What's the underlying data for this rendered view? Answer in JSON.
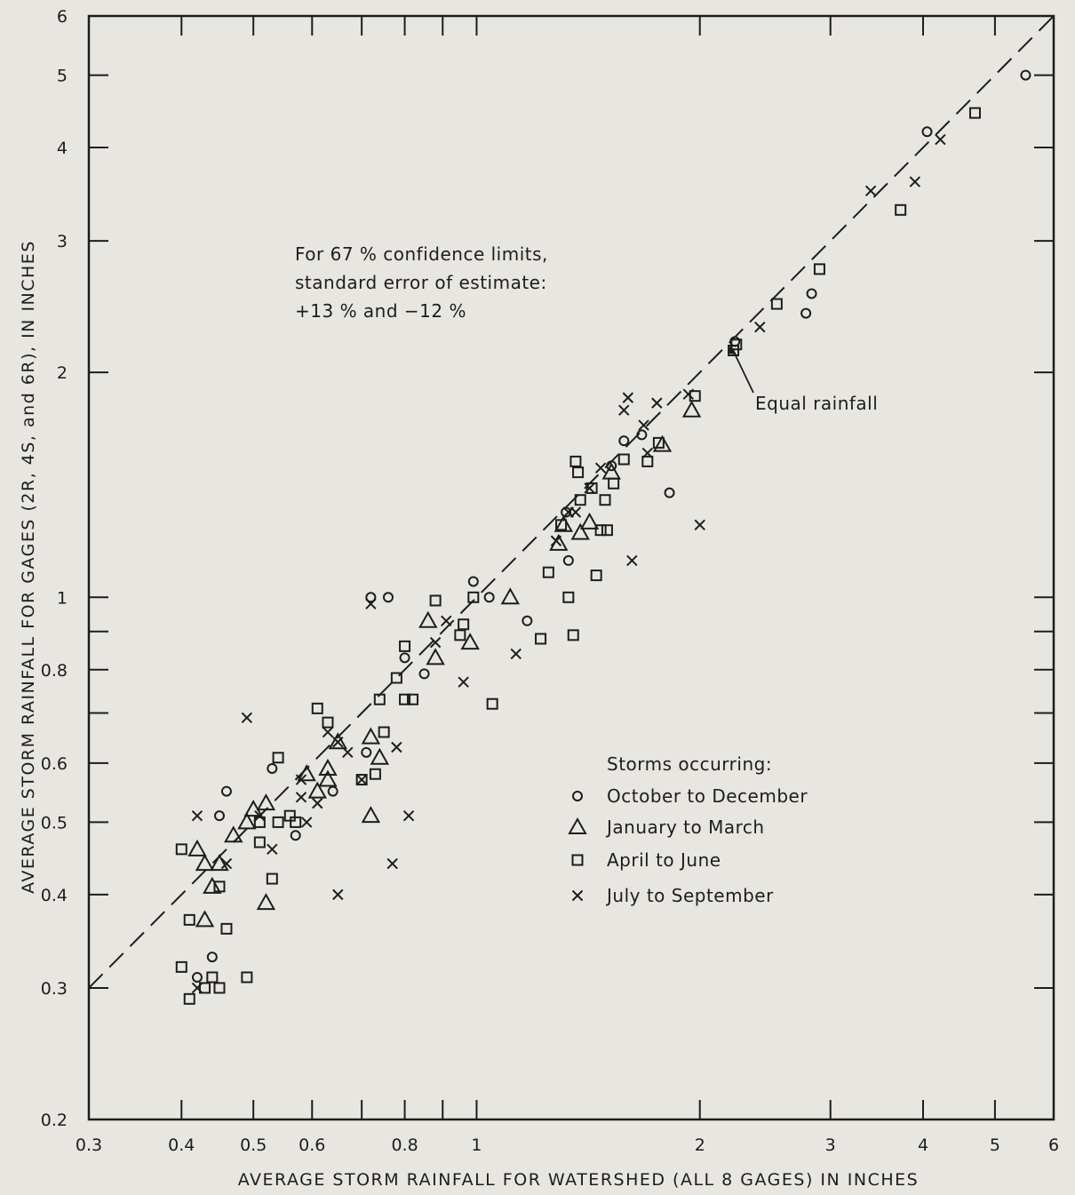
{
  "chart_data": {
    "type": "scatter",
    "title": "",
    "xlabel": "AVERAGE STORM RAINFALL FOR WATERSHED (ALL 8 GAGES) IN INCHES",
    "ylabel": "AVERAGE STORM RAINFALL FOR GAGES (2R, 4S, and 6R), IN INCHES",
    "xscale": "log",
    "yscale": "log",
    "xlim": [
      0.3,
      6
    ],
    "ylim": [
      0.2,
      6
    ],
    "x_tick_labels": [
      "0.3",
      "0.4",
      "0.5",
      "0.6",
      "0.8",
      "1",
      "2",
      "3",
      "4",
      "5",
      "6"
    ],
    "y_tick_labels": [
      "0.2",
      "0.3",
      "0.4",
      "0.5",
      "0.6",
      "0.8",
      "1",
      "2",
      "3",
      "4",
      "5",
      "6"
    ],
    "grid": false,
    "legend_position": "lower-right",
    "legend_title": "Storms occurring:",
    "annotation_lines": [
      "For 67 % confidence limits,",
      "standard error of estimate:",
      "+13 % and −12 %"
    ],
    "reference_line": {
      "label": "Equal rainfall",
      "style": "dashed",
      "x": [
        0.3,
        6
      ],
      "y": [
        0.3,
        6
      ]
    },
    "series": [
      {
        "name": "October to December",
        "marker": "circle",
        "points": [
          [
            0.46,
            0.55
          ],
          [
            0.44,
            0.33
          ],
          [
            0.42,
            0.31
          ],
          [
            0.45,
            0.51
          ],
          [
            0.53,
            0.59
          ],
          [
            0.57,
            0.48
          ],
          [
            0.64,
            0.55
          ],
          [
            0.71,
            0.62
          ],
          [
            0.72,
            1.0
          ],
          [
            0.76,
            1.0
          ],
          [
            0.8,
            0.83
          ],
          [
            0.85,
            0.79
          ],
          [
            0.99,
            1.05
          ],
          [
            1.04,
            1.0
          ],
          [
            1.17,
            0.93
          ],
          [
            1.33,
            1.12
          ],
          [
            1.32,
            1.3
          ],
          [
            1.52,
            1.5
          ],
          [
            1.58,
            1.62
          ],
          [
            1.67,
            1.65
          ],
          [
            1.82,
            1.38
          ],
          [
            2.23,
            2.2
          ],
          [
            2.78,
            2.4
          ],
          [
            2.83,
            2.55
          ],
          [
            4.05,
            4.2
          ],
          [
            5.5,
            5.0
          ]
        ]
      },
      {
        "name": "January to March",
        "marker": "triangle",
        "points": [
          [
            0.42,
            0.46
          ],
          [
            0.43,
            0.44
          ],
          [
            0.45,
            0.44
          ],
          [
            0.44,
            0.41
          ],
          [
            0.43,
            0.37
          ],
          [
            0.47,
            0.48
          ],
          [
            0.49,
            0.5
          ],
          [
            0.5,
            0.52
          ],
          [
            0.52,
            0.53
          ],
          [
            0.52,
            0.39
          ],
          [
            0.59,
            0.58
          ],
          [
            0.61,
            0.55
          ],
          [
            0.63,
            0.57
          ],
          [
            0.63,
            0.59
          ],
          [
            0.65,
            0.64
          ],
          [
            0.72,
            0.65
          ],
          [
            0.74,
            0.61
          ],
          [
            0.72,
            0.51
          ],
          [
            0.86,
            0.93
          ],
          [
            0.88,
            0.83
          ],
          [
            0.98,
            0.87
          ],
          [
            1.11,
            1.0
          ],
          [
            1.29,
            1.18
          ],
          [
            1.31,
            1.25
          ],
          [
            1.38,
            1.22
          ],
          [
            1.42,
            1.26
          ],
          [
            1.52,
            1.47
          ],
          [
            1.78,
            1.6
          ],
          [
            1.95,
            1.78
          ]
        ]
      },
      {
        "name": "April to June",
        "marker": "square",
        "points": [
          [
            0.4,
            0.46
          ],
          [
            0.4,
            0.32
          ],
          [
            0.41,
            0.37
          ],
          [
            0.41,
            0.29
          ],
          [
            0.43,
            0.3
          ],
          [
            0.44,
            0.31
          ],
          [
            0.45,
            0.3
          ],
          [
            0.45,
            0.41
          ],
          [
            0.46,
            0.36
          ],
          [
            0.49,
            0.31
          ],
          [
            0.51,
            0.47
          ],
          [
            0.51,
            0.5
          ],
          [
            0.53,
            0.42
          ],
          [
            0.54,
            0.5
          ],
          [
            0.54,
            0.61
          ],
          [
            0.56,
            0.51
          ],
          [
            0.57,
            0.5
          ],
          [
            0.61,
            0.71
          ],
          [
            0.63,
            0.68
          ],
          [
            0.7,
            0.57
          ],
          [
            0.73,
            0.58
          ],
          [
            0.74,
            0.73
          ],
          [
            0.75,
            0.66
          ],
          [
            0.78,
            0.78
          ],
          [
            0.8,
            0.73
          ],
          [
            0.8,
            0.86
          ],
          [
            0.82,
            0.73
          ],
          [
            0.88,
            0.99
          ],
          [
            0.95,
            0.89
          ],
          [
            0.96,
            0.92
          ],
          [
            0.99,
            1.0
          ],
          [
            1.05,
            0.72
          ],
          [
            1.22,
            0.88
          ],
          [
            1.25,
            1.08
          ],
          [
            1.3,
            1.25
          ],
          [
            1.33,
            1.0
          ],
          [
            1.35,
            0.89
          ],
          [
            1.36,
            1.52
          ],
          [
            1.37,
            1.47
          ],
          [
            1.38,
            1.35
          ],
          [
            1.43,
            1.4
          ],
          [
            1.45,
            1.07
          ],
          [
            1.47,
            1.23
          ],
          [
            1.49,
            1.35
          ],
          [
            1.5,
            1.23
          ],
          [
            1.53,
            1.42
          ],
          [
            1.58,
            1.53
          ],
          [
            1.7,
            1.52
          ],
          [
            1.76,
            1.61
          ],
          [
            1.97,
            1.86
          ],
          [
            2.22,
            2.14
          ],
          [
            2.24,
            2.18
          ],
          [
            2.54,
            2.47
          ],
          [
            2.9,
            2.75
          ],
          [
            3.73,
            3.3
          ],
          [
            4.7,
            4.45
          ]
        ]
      },
      {
        "name": "July to September",
        "marker": "x",
        "points": [
          [
            0.42,
            0.51
          ],
          [
            0.42,
            0.3
          ],
          [
            0.46,
            0.44
          ],
          [
            0.49,
            0.69
          ],
          [
            0.51,
            0.51
          ],
          [
            0.53,
            0.46
          ],
          [
            0.58,
            0.54
          ],
          [
            0.58,
            0.57
          ],
          [
            0.59,
            0.5
          ],
          [
            0.61,
            0.53
          ],
          [
            0.63,
            0.66
          ],
          [
            0.65,
            0.64
          ],
          [
            0.65,
            0.4
          ],
          [
            0.67,
            0.62
          ],
          [
            0.7,
            0.57
          ],
          [
            0.72,
            0.98
          ],
          [
            0.77,
            0.44
          ],
          [
            0.78,
            0.63
          ],
          [
            0.81,
            0.51
          ],
          [
            0.88,
            0.87
          ],
          [
            0.91,
            0.93
          ],
          [
            0.96,
            0.77
          ],
          [
            1.13,
            0.84
          ],
          [
            1.28,
            1.19
          ],
          [
            1.33,
            1.3
          ],
          [
            1.36,
            1.3
          ],
          [
            1.42,
            1.4
          ],
          [
            1.47,
            1.49
          ],
          [
            1.58,
            1.78
          ],
          [
            1.6,
            1.85
          ],
          [
            1.62,
            1.12
          ],
          [
            1.68,
            1.7
          ],
          [
            1.7,
            1.56
          ],
          [
            1.75,
            1.82
          ],
          [
            1.93,
            1.87
          ],
          [
            2.0,
            1.25
          ],
          [
            2.41,
            2.3
          ],
          [
            3.4,
            3.5
          ],
          [
            3.9,
            3.6
          ],
          [
            4.22,
            4.1
          ]
        ]
      }
    ]
  }
}
